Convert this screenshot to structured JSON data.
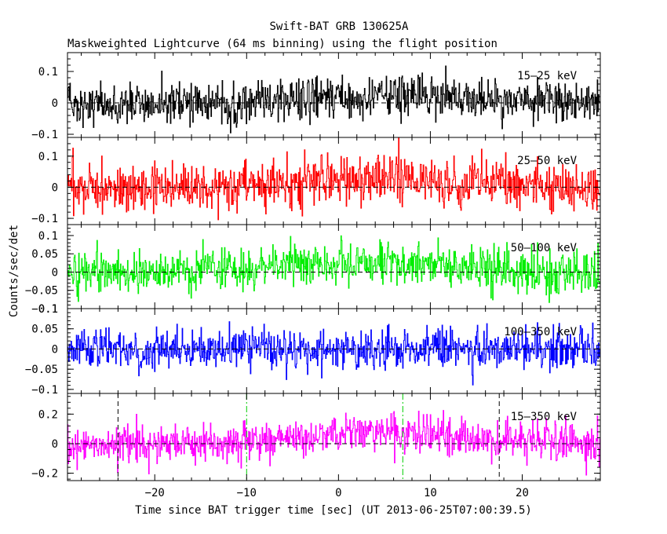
{
  "chart_data": {
    "type": "line",
    "title": "Swift-BAT GRB 130625A",
    "subtitle": "Maskweighted Lightcurve (64 ms binning) using the flight position",
    "xlabel": "Time since BAT trigger time [sec] (UT 2013-06-25T07:00:39.5)",
    "ylabel": "Counts/sec/det",
    "xlim": [
      -29.5,
      28.5
    ],
    "x_ticks": [
      -20,
      -10,
      0,
      10,
      20
    ],
    "x_tick_labels": [
      "−20",
      "−10",
      "0",
      "10",
      "20"
    ],
    "bin_width_sec": 0.064,
    "grid": false,
    "panels": [
      {
        "name": "15-25 keV",
        "label": "15–25 keV",
        "color": "#000000",
        "ylim": [
          -0.11,
          0.16
        ],
        "y_ticks": [
          -0.1,
          0,
          0.1
        ],
        "y_tick_labels": [
          "−0.1",
          "0",
          "0.1"
        ],
        "noise_sigma": 0.032,
        "hump": {
          "center": 5.0,
          "width": 9.0,
          "amplitude": 0.02
        }
      },
      {
        "name": "25-50 keV",
        "label": "25–50 keV",
        "color": "#ff0000",
        "ylim": [
          -0.12,
          0.16
        ],
        "y_ticks": [
          -0.1,
          0,
          0.1
        ],
        "y_tick_labels": [
          "−0.1",
          "0",
          "0.1"
        ],
        "noise_sigma": 0.038,
        "hump": {
          "center": 4.0,
          "width": 8.0,
          "amplitude": 0.03
        }
      },
      {
        "name": "50-100 keV",
        "label": "50–100 keV",
        "color": "#00ee00",
        "ylim": [
          -0.1,
          0.13
        ],
        "y_ticks": [
          -0.1,
          -0.05,
          0,
          0.05,
          0.1
        ],
        "y_tick_labels": [
          "−0.1",
          "−0.05",
          "0",
          "0.05",
          "0.1"
        ],
        "noise_sigma": 0.03,
        "hump": {
          "center": 4.0,
          "width": 8.0,
          "amplitude": 0.025
        }
      },
      {
        "name": "100-350 keV",
        "label": "100–350 keV",
        "color": "#0000ff",
        "ylim": [
          -0.11,
          0.1
        ],
        "y_ticks": [
          -0.1,
          -0.05,
          0,
          0.05,
          0.1
        ],
        "y_tick_labels": [
          "−0.1",
          "−0.05",
          "0",
          "0.05",
          "0.1"
        ],
        "noise_sigma": 0.025,
        "hump": {
          "center": 0,
          "width": 1,
          "amplitude": 0
        }
      },
      {
        "name": "15-350 keV",
        "label": "15–350 keV",
        "color": "#ff00ff",
        "ylim": [
          -0.25,
          0.34
        ],
        "y_ticks": [
          -0.2,
          0,
          0.2
        ],
        "y_tick_labels": [
          "−0.2",
          "0",
          "0.2"
        ],
        "noise_sigma": 0.065,
        "hump": {
          "center": 3.5,
          "width": 8.0,
          "amplitude": 0.08
        },
        "vlines": [
          {
            "x": -24.0,
            "color": "#000000",
            "style": "dashed"
          },
          {
            "x": -10.0,
            "color": "#00cc00",
            "style": "dash-dot"
          },
          {
            "x": 7.0,
            "color": "#00cc00",
            "style": "dash-dot"
          },
          {
            "x": 17.5,
            "color": "#000000",
            "style": "dashed"
          }
        ]
      }
    ]
  }
}
